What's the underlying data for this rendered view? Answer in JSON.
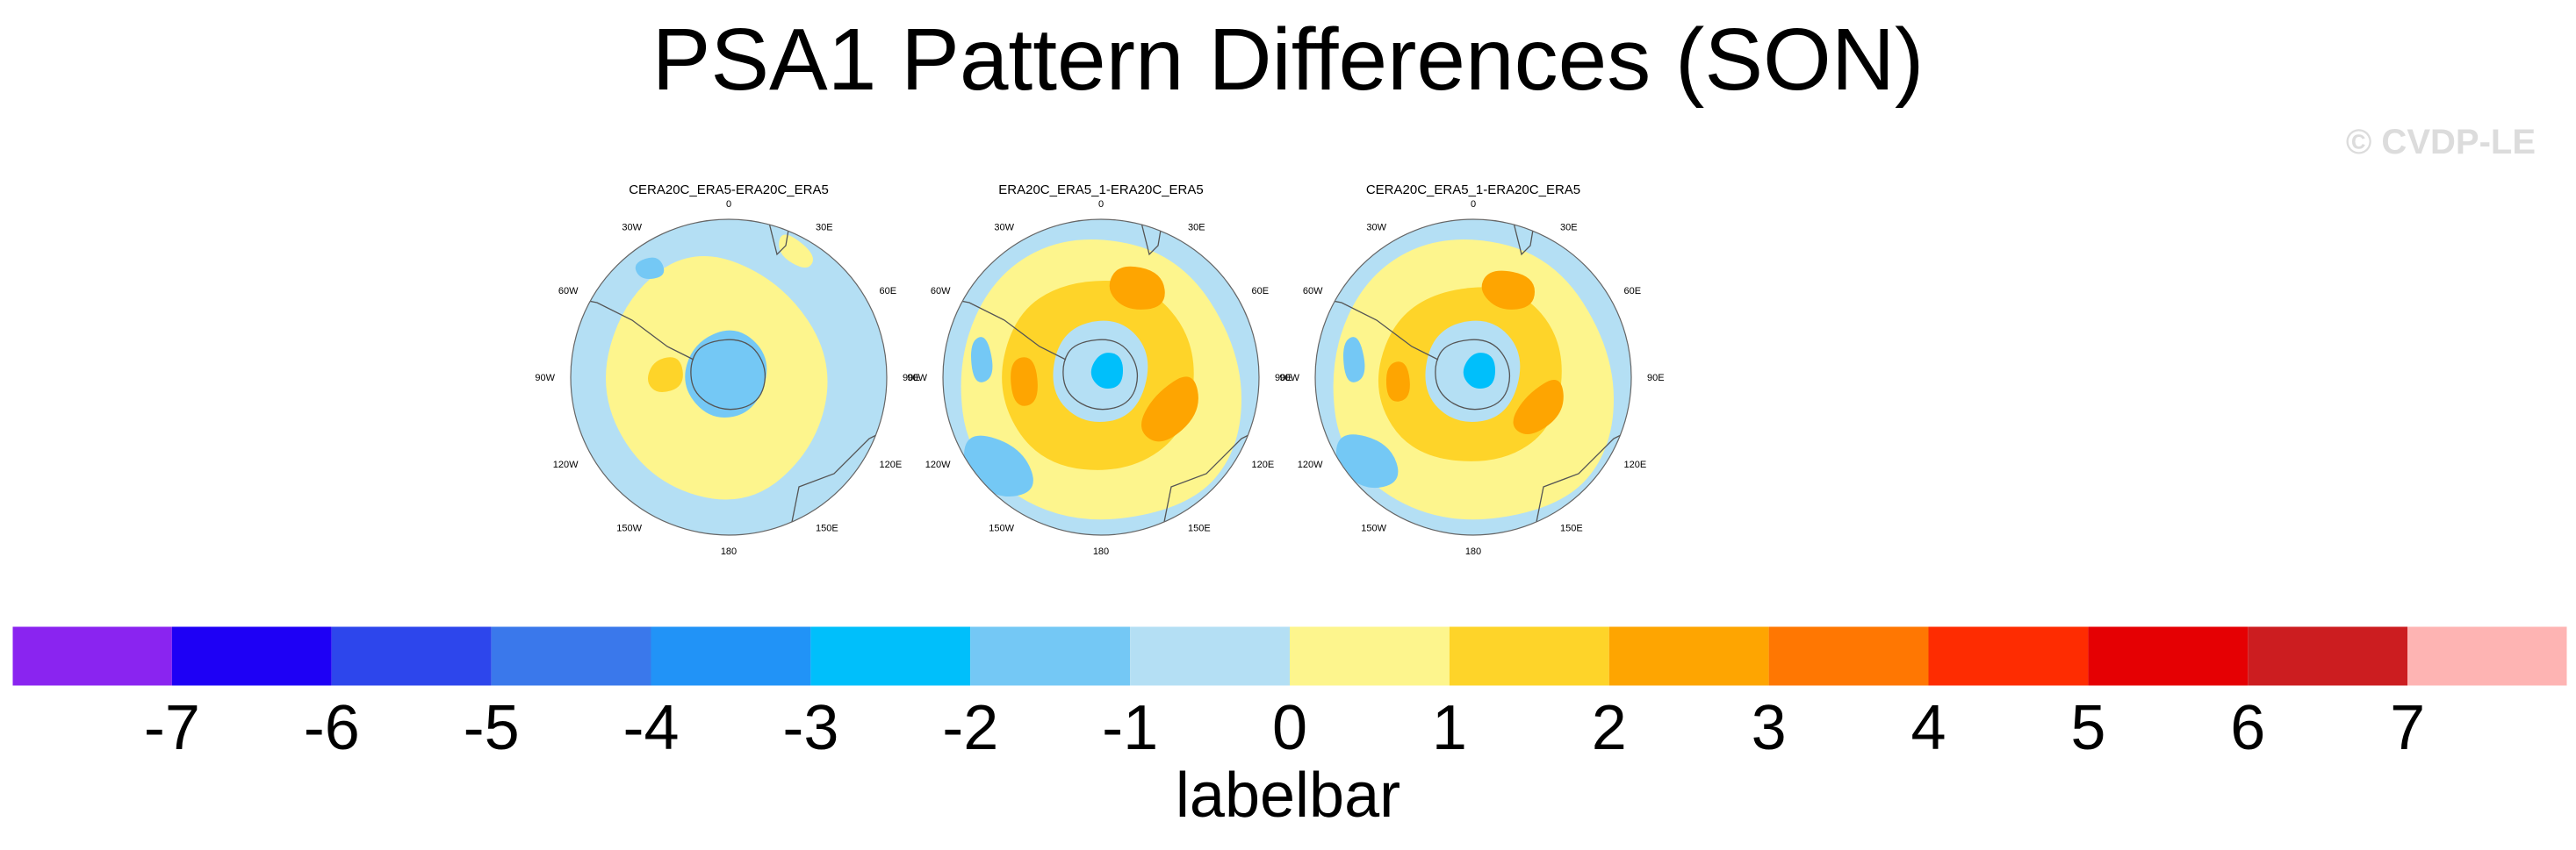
{
  "title": "PSA1 Pattern Differences (SON)",
  "watermark": "© CVDP-LE",
  "chart_data": {
    "type": "filled-contour-map",
    "projection": "south-polar-stereographic",
    "panels": [
      {
        "title": "CERA20C_ERA5-ERA20C_ERA5"
      },
      {
        "title": "ERA20C_ERA5_1-ERA20C_ERA5"
      },
      {
        "title": "CERA20C_ERA5_1-ERA20C_ERA5"
      }
    ],
    "lon_labels": [
      "0",
      "30E",
      "60E",
      "90E",
      "120E",
      "150E",
      "180",
      "150W",
      "120W",
      "90W",
      "60W",
      "30W"
    ],
    "colorbar": {
      "label": "labelbar",
      "levels": [
        -7,
        -6,
        -5,
        -4,
        -3,
        -2,
        -1,
        0,
        1,
        2,
        3,
        4,
        5,
        6,
        7
      ],
      "colors": [
        "#8a24f0",
        "#1e00f5",
        "#2d46ec",
        "#3a78eb",
        "#2193f7",
        "#00bffb",
        "#74c8f5",
        "#b4dff4",
        "#fdf58d",
        "#fed429",
        "#fea501",
        "#ff7702",
        "#fe2c01",
        "#e50003",
        "#cc1d20",
        "#feb4b3"
      ]
    }
  }
}
